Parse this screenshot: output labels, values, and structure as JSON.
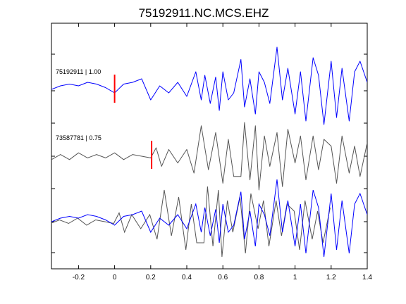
{
  "chart_data": {
    "type": "line",
    "title": "75192911.NC.MCS.EHZ",
    "xlabel": "",
    "ylabel": "",
    "xlim": [
      -0.35,
      1.4
    ],
    "x_ticks": [
      -0.2,
      0,
      0.2,
      0.4,
      0.6,
      0.8,
      1,
      1.2,
      1.4
    ],
    "x_tick_labels": [
      "-0.2",
      "0",
      "0.2",
      "0.4",
      "0.6",
      "0.8",
      "1",
      "1.2",
      "1.4"
    ],
    "grid": false,
    "colors": {
      "template": "#0000ff",
      "match": "#555555",
      "pick": "#ff0000",
      "axis": "#000000"
    },
    "traces": [
      {
        "label": "75192911 | 1.00",
        "color": "#0000ff",
        "pick_time": 0.0,
        "x": [
          -0.35,
          -0.3,
          -0.25,
          -0.2,
          -0.15,
          -0.1,
          -0.05,
          0,
          0.05,
          0.1,
          0.15,
          0.2,
          0.25,
          0.3,
          0.35,
          0.4,
          0.45,
          0.48,
          0.5,
          0.53,
          0.56,
          0.58,
          0.6,
          0.63,
          0.66,
          0.7,
          0.72,
          0.75,
          0.78,
          0.8,
          0.83,
          0.86,
          0.9,
          0.93,
          0.96,
          1,
          1.03,
          1.06,
          1.1,
          1.13,
          1.16,
          1.2,
          1.23,
          1.26,
          1.3,
          1.33,
          1.36,
          1.4
        ],
        "y": [
          0,
          0.1,
          0.15,
          0.1,
          0.2,
          0.15,
          0.05,
          -0.1,
          0.15,
          0.2,
          0.3,
          -0.3,
          0.1,
          -0.1,
          0.2,
          -0.2,
          0.5,
          -0.3,
          0.4,
          -0.4,
          0.35,
          -0.6,
          0.5,
          -0.3,
          -0.1,
          0.85,
          -0.5,
          0.3,
          -0.7,
          0.5,
          0.2,
          -0.4,
          1.2,
          -0.3,
          0.6,
          -0.7,
          0.5,
          -0.9,
          0.9,
          0.4,
          -1.0,
          0.8,
          -0.8,
          0.6,
          -0.9,
          0.5,
          0.8,
          0.2
        ]
      },
      {
        "label": "73587781 | 0.75",
        "color": "#555555",
        "pick_time": 0.205,
        "x": [
          -0.35,
          -0.3,
          -0.25,
          -0.2,
          -0.15,
          -0.1,
          -0.05,
          0,
          0.05,
          0.1,
          0.15,
          0.2,
          0.23,
          0.26,
          0.3,
          0.35,
          0.4,
          0.44,
          0.48,
          0.52,
          0.56,
          0.6,
          0.63,
          0.66,
          0.7,
          0.72,
          0.75,
          0.78,
          0.8,
          0.83,
          0.86,
          0.9,
          0.93,
          0.96,
          1,
          1.03,
          1.06,
          1.1,
          1.13,
          1.16,
          1.2,
          1.23,
          1.26,
          1.3,
          1.33,
          1.36,
          1.4
        ],
        "y": [
          -0.1,
          0.05,
          -0.1,
          0.1,
          -0.05,
          0.05,
          -0.05,
          0.1,
          -0.1,
          0.05,
          0,
          -0.05,
          0.25,
          -0.3,
          0.2,
          -0.2,
          0.2,
          -0.5,
          0.9,
          -0.4,
          0.7,
          -0.8,
          0.5,
          -0.6,
          -0.6,
          1.0,
          -0.7,
          0.9,
          -1.0,
          0.6,
          -0.3,
          0.7,
          -0.9,
          0.8,
          -0.2,
          0.6,
          -0.7,
          0.6,
          -0.4,
          0.5,
          0.3,
          -0.8,
          0.6,
          -0.5,
          0.3,
          -0.6,
          0.4
        ]
      }
    ],
    "overlay": {
      "series": [
        "template",
        "match"
      ]
    }
  }
}
